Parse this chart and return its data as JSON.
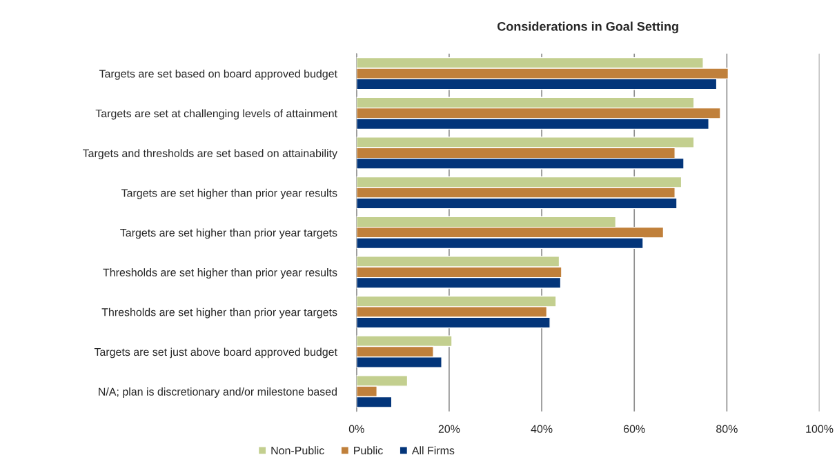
{
  "chart_data": {
    "type": "bar",
    "orientation": "horizontal",
    "title": "Considerations in Goal Setting",
    "categories": [
      "Targets are set based on board approved budget",
      "Targets are set at challenging levels of attainment",
      "Targets and thresholds are set based on attainability",
      "Targets are set higher than prior year results",
      "Targets are set higher than prior year targets",
      "Thresholds are set higher than prior year results",
      "Thresholds are set higher than prior year targets",
      "Targets are set just above board approved budget",
      "N/A; plan is discretionary and/or milestone based"
    ],
    "series": [
      {
        "name": "Non-Public",
        "color": "#c3cf8f",
        "values": [
          74.9,
          72.9,
          72.9,
          70.2,
          56.0,
          43.8,
          43.1,
          20.6,
          11.0
        ]
      },
      {
        "name": "Public",
        "color": "#c0803b",
        "values": [
          80.3,
          78.6,
          68.8,
          68.8,
          66.3,
          44.3,
          41.1,
          16.6,
          4.4
        ]
      },
      {
        "name": "All Firms",
        "color": "#03357a",
        "values": [
          77.8,
          76.1,
          70.7,
          69.2,
          61.9,
          44.1,
          41.8,
          18.4,
          7.6
        ]
      }
    ],
    "xlim": [
      0,
      100
    ],
    "xticks": [
      {
        "value": 0,
        "label": "0%"
      },
      {
        "value": 20,
        "label": "20%"
      },
      {
        "value": 40,
        "label": "40%"
      },
      {
        "value": 60,
        "label": "60%"
      },
      {
        "value": 80,
        "label": "80%"
      },
      {
        "value": 100,
        "label": "100%"
      }
    ],
    "grid": "x",
    "legend": "bottom"
  }
}
